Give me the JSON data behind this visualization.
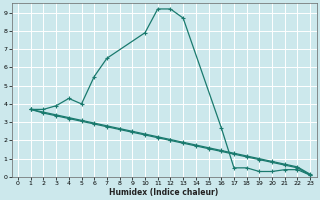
{
  "xlabel": "Humidex (Indice chaleur)",
  "bg_color": "#cce8ec",
  "grid_color": "#ffffff",
  "line_color": "#1a7a6e",
  "xlim": [
    -0.5,
    23.5
  ],
  "ylim": [
    0,
    9.5
  ],
  "xticks": [
    0,
    1,
    2,
    3,
    4,
    5,
    6,
    7,
    8,
    9,
    10,
    11,
    12,
    13,
    14,
    15,
    16,
    17,
    18,
    19,
    20,
    21,
    22,
    23
  ],
  "yticks": [
    0,
    1,
    2,
    3,
    4,
    5,
    6,
    7,
    8,
    9
  ],
  "curve_x": [
    1,
    2,
    3,
    4,
    5,
    6,
    7,
    10,
    11,
    12,
    13,
    16,
    17,
    18,
    19,
    20,
    21,
    22,
    23
  ],
  "curve_y": [
    3.7,
    3.7,
    3.9,
    4.3,
    4.0,
    5.5,
    6.5,
    7.9,
    9.2,
    9.2,
    8.7,
    2.7,
    0.5,
    0.5,
    0.3,
    0.3,
    0.4,
    0.4,
    0.1
  ],
  "line1_x": [
    1,
    2,
    3,
    4,
    5,
    6,
    7,
    8,
    9,
    10,
    11,
    12,
    13,
    14,
    15,
    16,
    17,
    18,
    19,
    20,
    21,
    22,
    23
  ],
  "line1_y": [
    3.7,
    3.5,
    3.35,
    3.2,
    3.05,
    2.9,
    2.75,
    2.6,
    2.45,
    2.3,
    2.15,
    2.0,
    1.85,
    1.7,
    1.55,
    1.4,
    1.25,
    1.1,
    0.95,
    0.8,
    0.65,
    0.5,
    0.1
  ],
  "line2_x": [
    1,
    2,
    3,
    4,
    5,
    6,
    7,
    8,
    9,
    10,
    11,
    12,
    13,
    14,
    15,
    16,
    17,
    18,
    19,
    20,
    21,
    22,
    23
  ],
  "line2_y": [
    3.7,
    3.55,
    3.4,
    3.25,
    3.1,
    2.95,
    2.8,
    2.65,
    2.5,
    2.35,
    2.2,
    2.05,
    1.9,
    1.75,
    1.6,
    1.45,
    1.3,
    1.15,
    1.0,
    0.85,
    0.7,
    0.55,
    0.15
  ]
}
